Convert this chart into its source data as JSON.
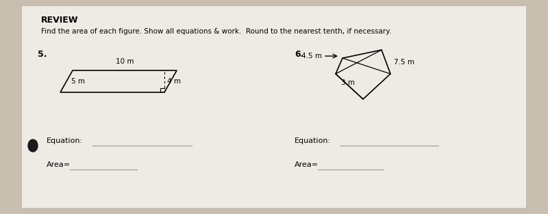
{
  "bg_color": "#c8bfb0",
  "paper_color": "#eeebe5",
  "title": "REVIEW",
  "instructions": "Find the area of each figure. Show all equations & work.  Round to the nearest tenth, if necessary.",
  "p5_label": "5.",
  "p6_label": "6.",
  "para_top_label": "10 m",
  "para_left_label": "5 m",
  "para_right_label": "4 m",
  "kite_arrow_label": "4.5 m",
  "kite_right_label": "7.5 m",
  "kite_bl_label": "3 m",
  "equation_label": "Equation:",
  "area_label": "Area=",
  "bullet_color": "#1a1a1a"
}
